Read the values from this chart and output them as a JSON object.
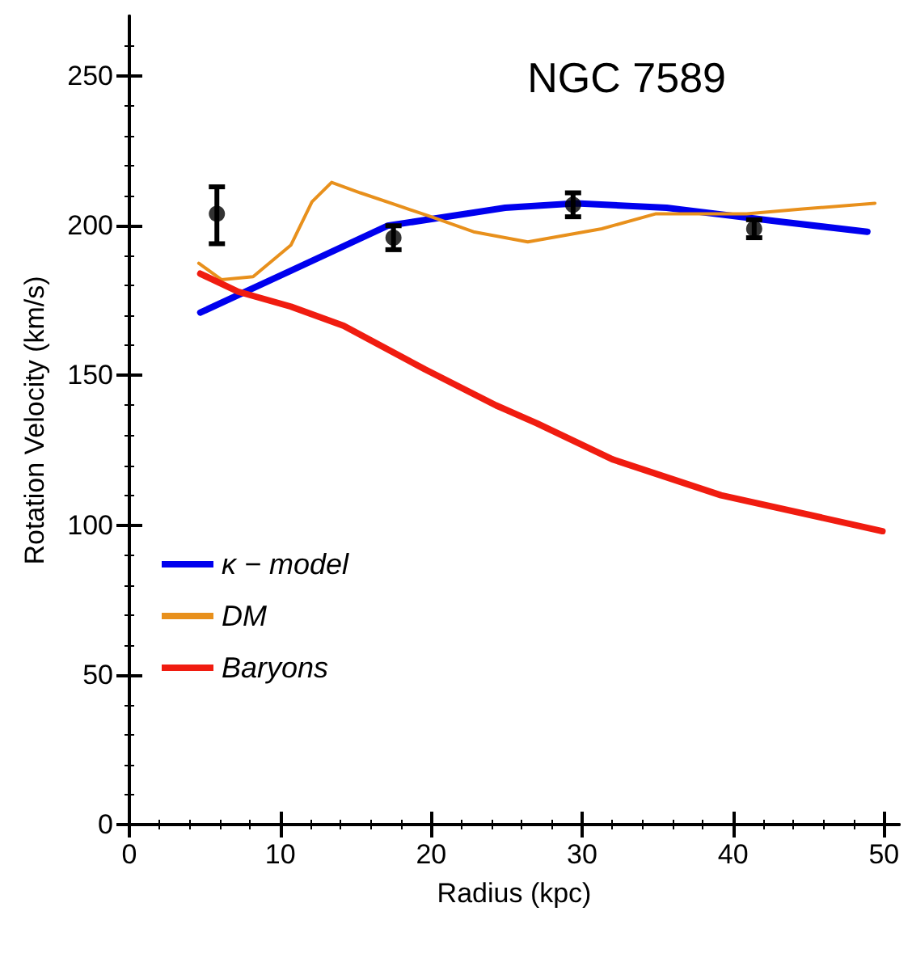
{
  "chart_data": {
    "type": "line",
    "title": "NGC 7589",
    "xlabel": "Radius (kpc)",
    "ylabel": "Rotation Velocity (km/s)",
    "xlim": [
      0,
      51
    ],
    "xticks": [
      0,
      10,
      20,
      30,
      40,
      50
    ],
    "ylim": [
      0,
      270
    ],
    "yticks": [
      0,
      50,
      100,
      150,
      200,
      250
    ],
    "grid": false,
    "legend": "left",
    "line_style": "solid",
    "marker": "none",
    "series": [
      {
        "name": "κ − model",
        "color": "#0000ee",
        "x": [
          4.7,
          10.7,
          17.1,
          24.9,
          29.6,
          35.6,
          42.7,
          48.9
        ],
        "values": [
          171,
          185,
          200,
          206,
          207.5,
          206,
          201.6,
          198
        ]
      },
      {
        "name": "DM",
        "color": "#e8901c",
        "x": [
          4.6,
          6.1,
          8.2,
          10.7,
          12.1,
          13.4,
          15.3,
          20,
          22.8,
          26.4,
          31.3,
          34.9,
          40.9,
          44.6,
          49.4
        ],
        "values": [
          187.5,
          182,
          183,
          193.5,
          208,
          214.5,
          211,
          203,
          198,
          194.6,
          199,
          204,
          204,
          205.6,
          207.5
        ]
      },
      {
        "name": "Baryons",
        "color": "#f01c10",
        "x": [
          4.7,
          7.2,
          10.7,
          14.2,
          19.6,
          24.3,
          27,
          32,
          39.2,
          49.9
        ],
        "values": [
          184,
          178,
          173,
          166.6,
          152,
          140,
          134,
          122,
          110,
          98
        ]
      },
      {
        "type": "scatter",
        "color": "#000000",
        "marker": "circle",
        "x": [
          5.8,
          17.5,
          29.4,
          41.4
        ],
        "values": [
          204,
          196,
          207,
          199
        ],
        "errors": [
          [
            194,
            213
          ],
          4,
          4,
          3
        ]
      }
    ]
  }
}
